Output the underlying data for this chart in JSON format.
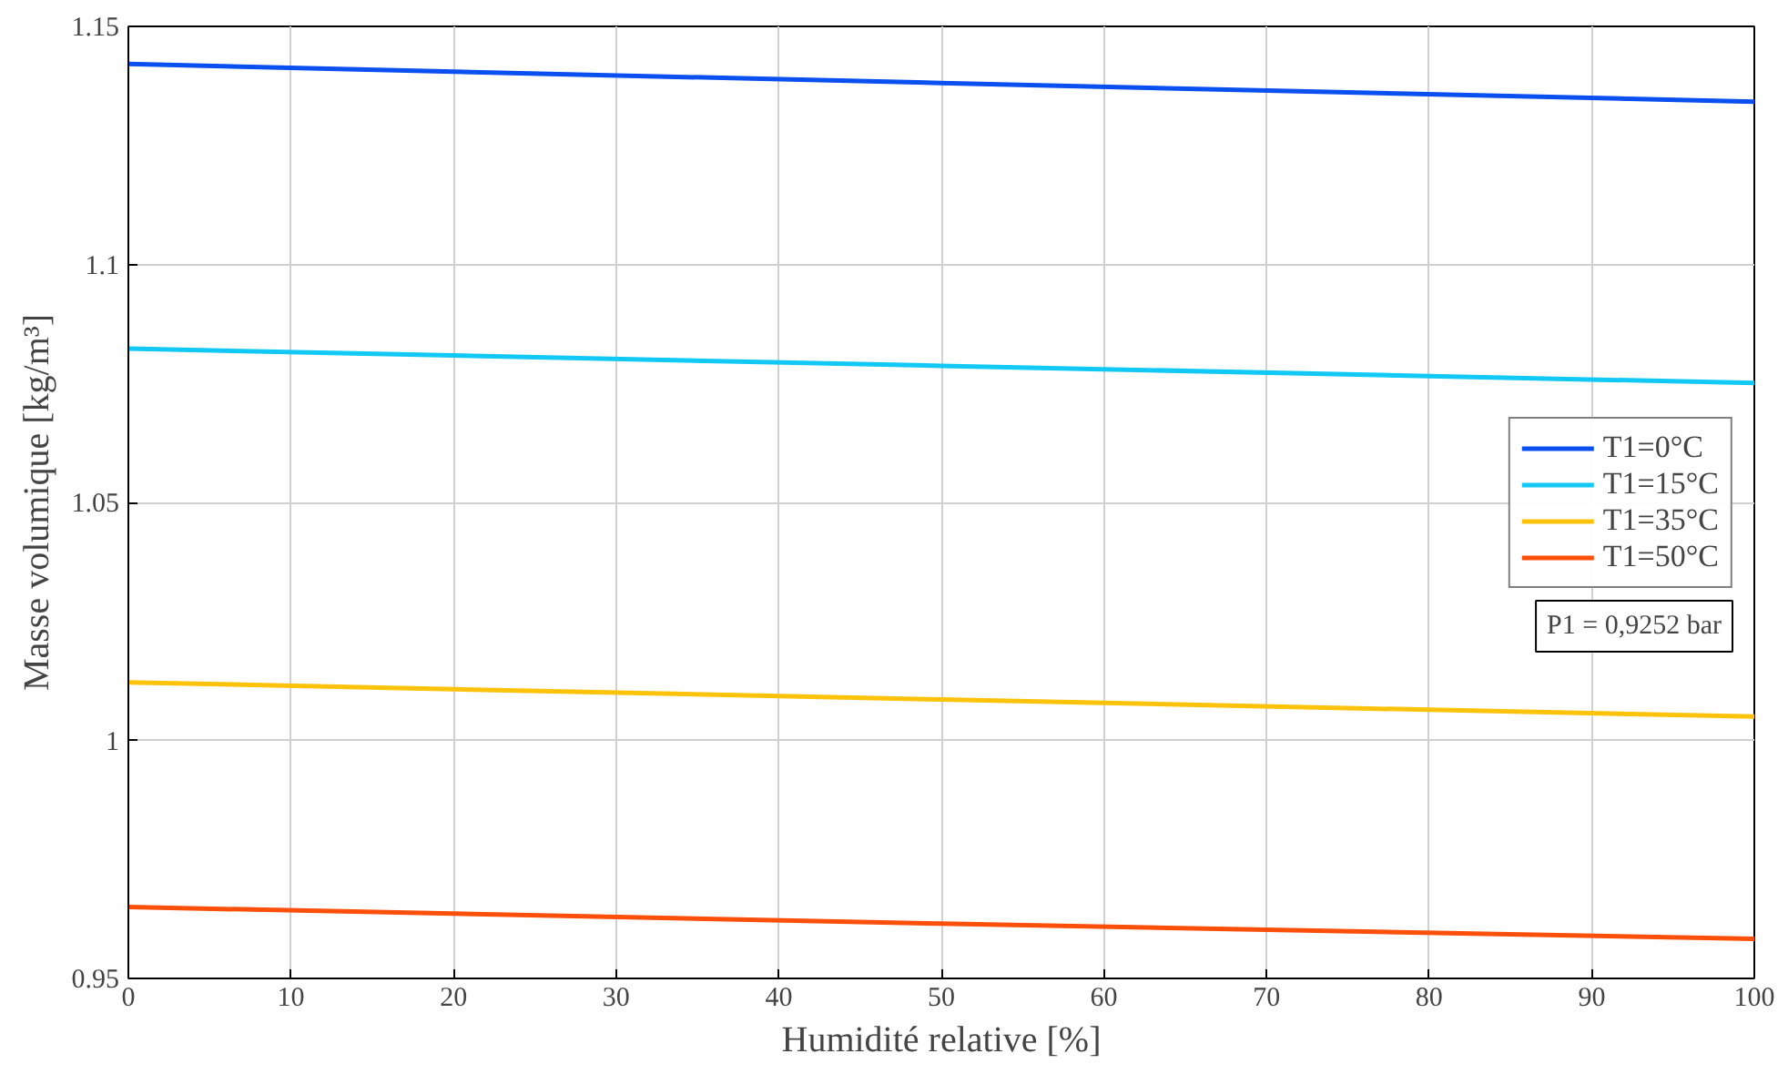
{
  "chart_data": {
    "type": "line",
    "xlabel": "Humidité relative [%]",
    "ylabel": "Masse volumique [kg/m³]",
    "x": [
      0,
      50,
      100
    ],
    "series": [
      {
        "name": "T1=0°C",
        "color": "#0a4ff0",
        "values": [
          1.1421,
          1.1381,
          1.1342
        ]
      },
      {
        "name": "T1=15°C",
        "color": "#12c8f5",
        "values": [
          1.0823,
          1.0787,
          1.0751
        ]
      },
      {
        "name": "T1=35°C",
        "color": "#fcc30a",
        "values": [
          1.0122,
          1.0086,
          1.005
        ]
      },
      {
        "name": "T1=50°C",
        "color": "#fb4f0a",
        "values": [
          0.965,
          0.9615,
          0.9583
        ]
      }
    ],
    "xlim": [
      0,
      100
    ],
    "ylim": [
      0.95,
      1.15
    ],
    "xticks": [
      0,
      10,
      20,
      30,
      40,
      50,
      60,
      70,
      80,
      90,
      100
    ],
    "yticks": [
      {
        "value": 0.95,
        "label": "0.95"
      },
      {
        "value": 1,
        "label": "1"
      },
      {
        "value": 1.05,
        "label": "1.05"
      },
      {
        "value": 1.1,
        "label": "1.1"
      },
      {
        "value": 1.15,
        "label": "1.15"
      }
    ],
    "grid": true,
    "legend": "right",
    "line_style": "solid",
    "annotations": [
      "P1 = 0,9252 bar"
    ]
  }
}
